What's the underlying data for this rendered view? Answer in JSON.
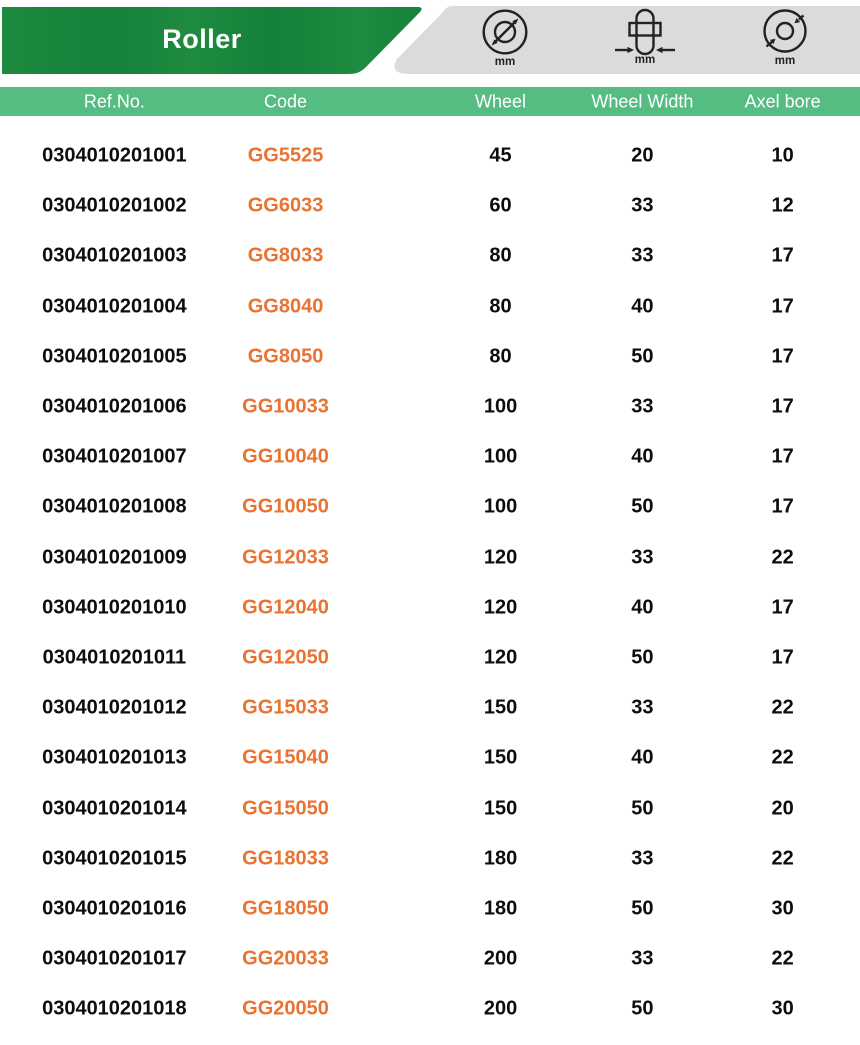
{
  "banner": {
    "title": "Roller"
  },
  "unit_icons": {
    "wheel_diameter_unit": "mm",
    "wheel_width_unit": "mm",
    "axle_bore_unit": "mm"
  },
  "table": {
    "columns": [
      "Ref.No.",
      "Code",
      "Wheel",
      "Wheel Width",
      "Axel bore"
    ],
    "rows": [
      [
        "0304010201001",
        "GG5525",
        "45",
        "20",
        "10"
      ],
      [
        "0304010201002",
        "GG6033",
        "60",
        "33",
        "12"
      ],
      [
        "0304010201003",
        "GG8033",
        "80",
        "33",
        "17"
      ],
      [
        "0304010201004",
        "GG8040",
        "80",
        "40",
        "17"
      ],
      [
        "0304010201005",
        "GG8050",
        "80",
        "50",
        "17"
      ],
      [
        "0304010201006",
        "GG10033",
        "100",
        "33",
        "17"
      ],
      [
        "0304010201007",
        "GG10040",
        "100",
        "40",
        "17"
      ],
      [
        "0304010201008",
        "GG10050",
        "100",
        "50",
        "17"
      ],
      [
        "0304010201009",
        "GG12033",
        "120",
        "33",
        "22"
      ],
      [
        "0304010201010",
        "GG12040",
        "120",
        "40",
        "17"
      ],
      [
        "0304010201011",
        "GG12050",
        "120",
        "50",
        "17"
      ],
      [
        "0304010201012",
        "GG15033",
        "150",
        "33",
        "22"
      ],
      [
        "0304010201013",
        "GG15040",
        "150",
        "40",
        "22"
      ],
      [
        "0304010201014",
        "GG15050",
        "150",
        "50",
        "20"
      ],
      [
        "0304010201015",
        "GG18033",
        "180",
        "33",
        "22"
      ],
      [
        "0304010201016",
        "GG18050",
        "180",
        "50",
        "30"
      ],
      [
        "0304010201017",
        "GG20033",
        "200",
        "33",
        "22"
      ],
      [
        "0304010201018",
        "GG20050",
        "200",
        "50",
        "30"
      ]
    ]
  },
  "colors": {
    "banner_green": "#1E8A3E",
    "header_row_green": "#55BC82",
    "band_gray": "#DBDBDB",
    "code_orange": "#E87332",
    "data_black": "#0d0d0d",
    "icon_stroke": "#222222"
  }
}
